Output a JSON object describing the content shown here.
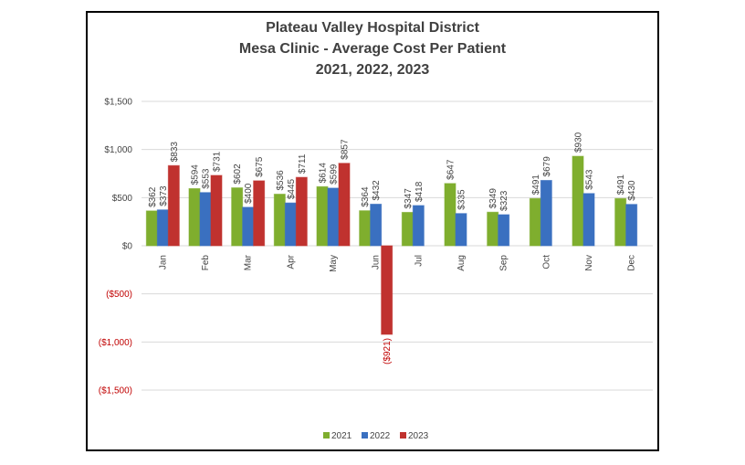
{
  "chart_data": {
    "type": "bar",
    "title": [
      "Plateau Valley Hospital District",
      "Mesa Clinic  - Average Cost Per Patient",
      "2021, 2022, 2023"
    ],
    "categories": [
      "Jan",
      "Feb",
      "Mar",
      "Apr",
      "May",
      "Jun",
      "Jul",
      "Aug",
      "Sep",
      "Oct",
      "Nov",
      "Dec"
    ],
    "series": [
      {
        "name": "2021",
        "color": "#7fae2e",
        "values": [
          362,
          594,
          602,
          536,
          614,
          364,
          347,
          647,
          349,
          491,
          930,
          491
        ],
        "value_labels": [
          "$362",
          "$594",
          "$602",
          "$536",
          "$614",
          "$364",
          "$347",
          "$647",
          "$349",
          "$491",
          "$930",
          "$491"
        ]
      },
      {
        "name": "2022",
        "color": "#3a70c0",
        "values": [
          373,
          553,
          400,
          445,
          599,
          432,
          418,
          335,
          323,
          679,
          543,
          430
        ],
        "value_labels": [
          "$373",
          "$553",
          "$400",
          "$445",
          "$599",
          "$432",
          "$418",
          "$335",
          "$323",
          "$679",
          "$543",
          "$430"
        ]
      },
      {
        "name": "2023",
        "color": "#c0322f",
        "values": [
          833,
          731,
          675,
          711,
          857,
          -921,
          null,
          null,
          null,
          null,
          null,
          null
        ],
        "value_labels": [
          "$833",
          "$731",
          "$675",
          "$711",
          "$857",
          "($921)",
          null,
          null,
          null,
          null,
          null,
          null
        ]
      }
    ],
    "ylim": [
      -1500,
      1500
    ],
    "yticks": [
      {
        "value": -1500,
        "label": "($1,500)"
      },
      {
        "value": -1000,
        "label": "($1,000)"
      },
      {
        "value": -500,
        "label": "($500)"
      },
      {
        "value": 0,
        "label": "$0"
      },
      {
        "value": 500,
        "label": "$500"
      },
      {
        "value": 1000,
        "label": "$1,000"
      },
      {
        "value": 1500,
        "label": "$1,500"
      }
    ],
    "grid": true,
    "negative_color": "#c00000",
    "legend": "bottom"
  }
}
